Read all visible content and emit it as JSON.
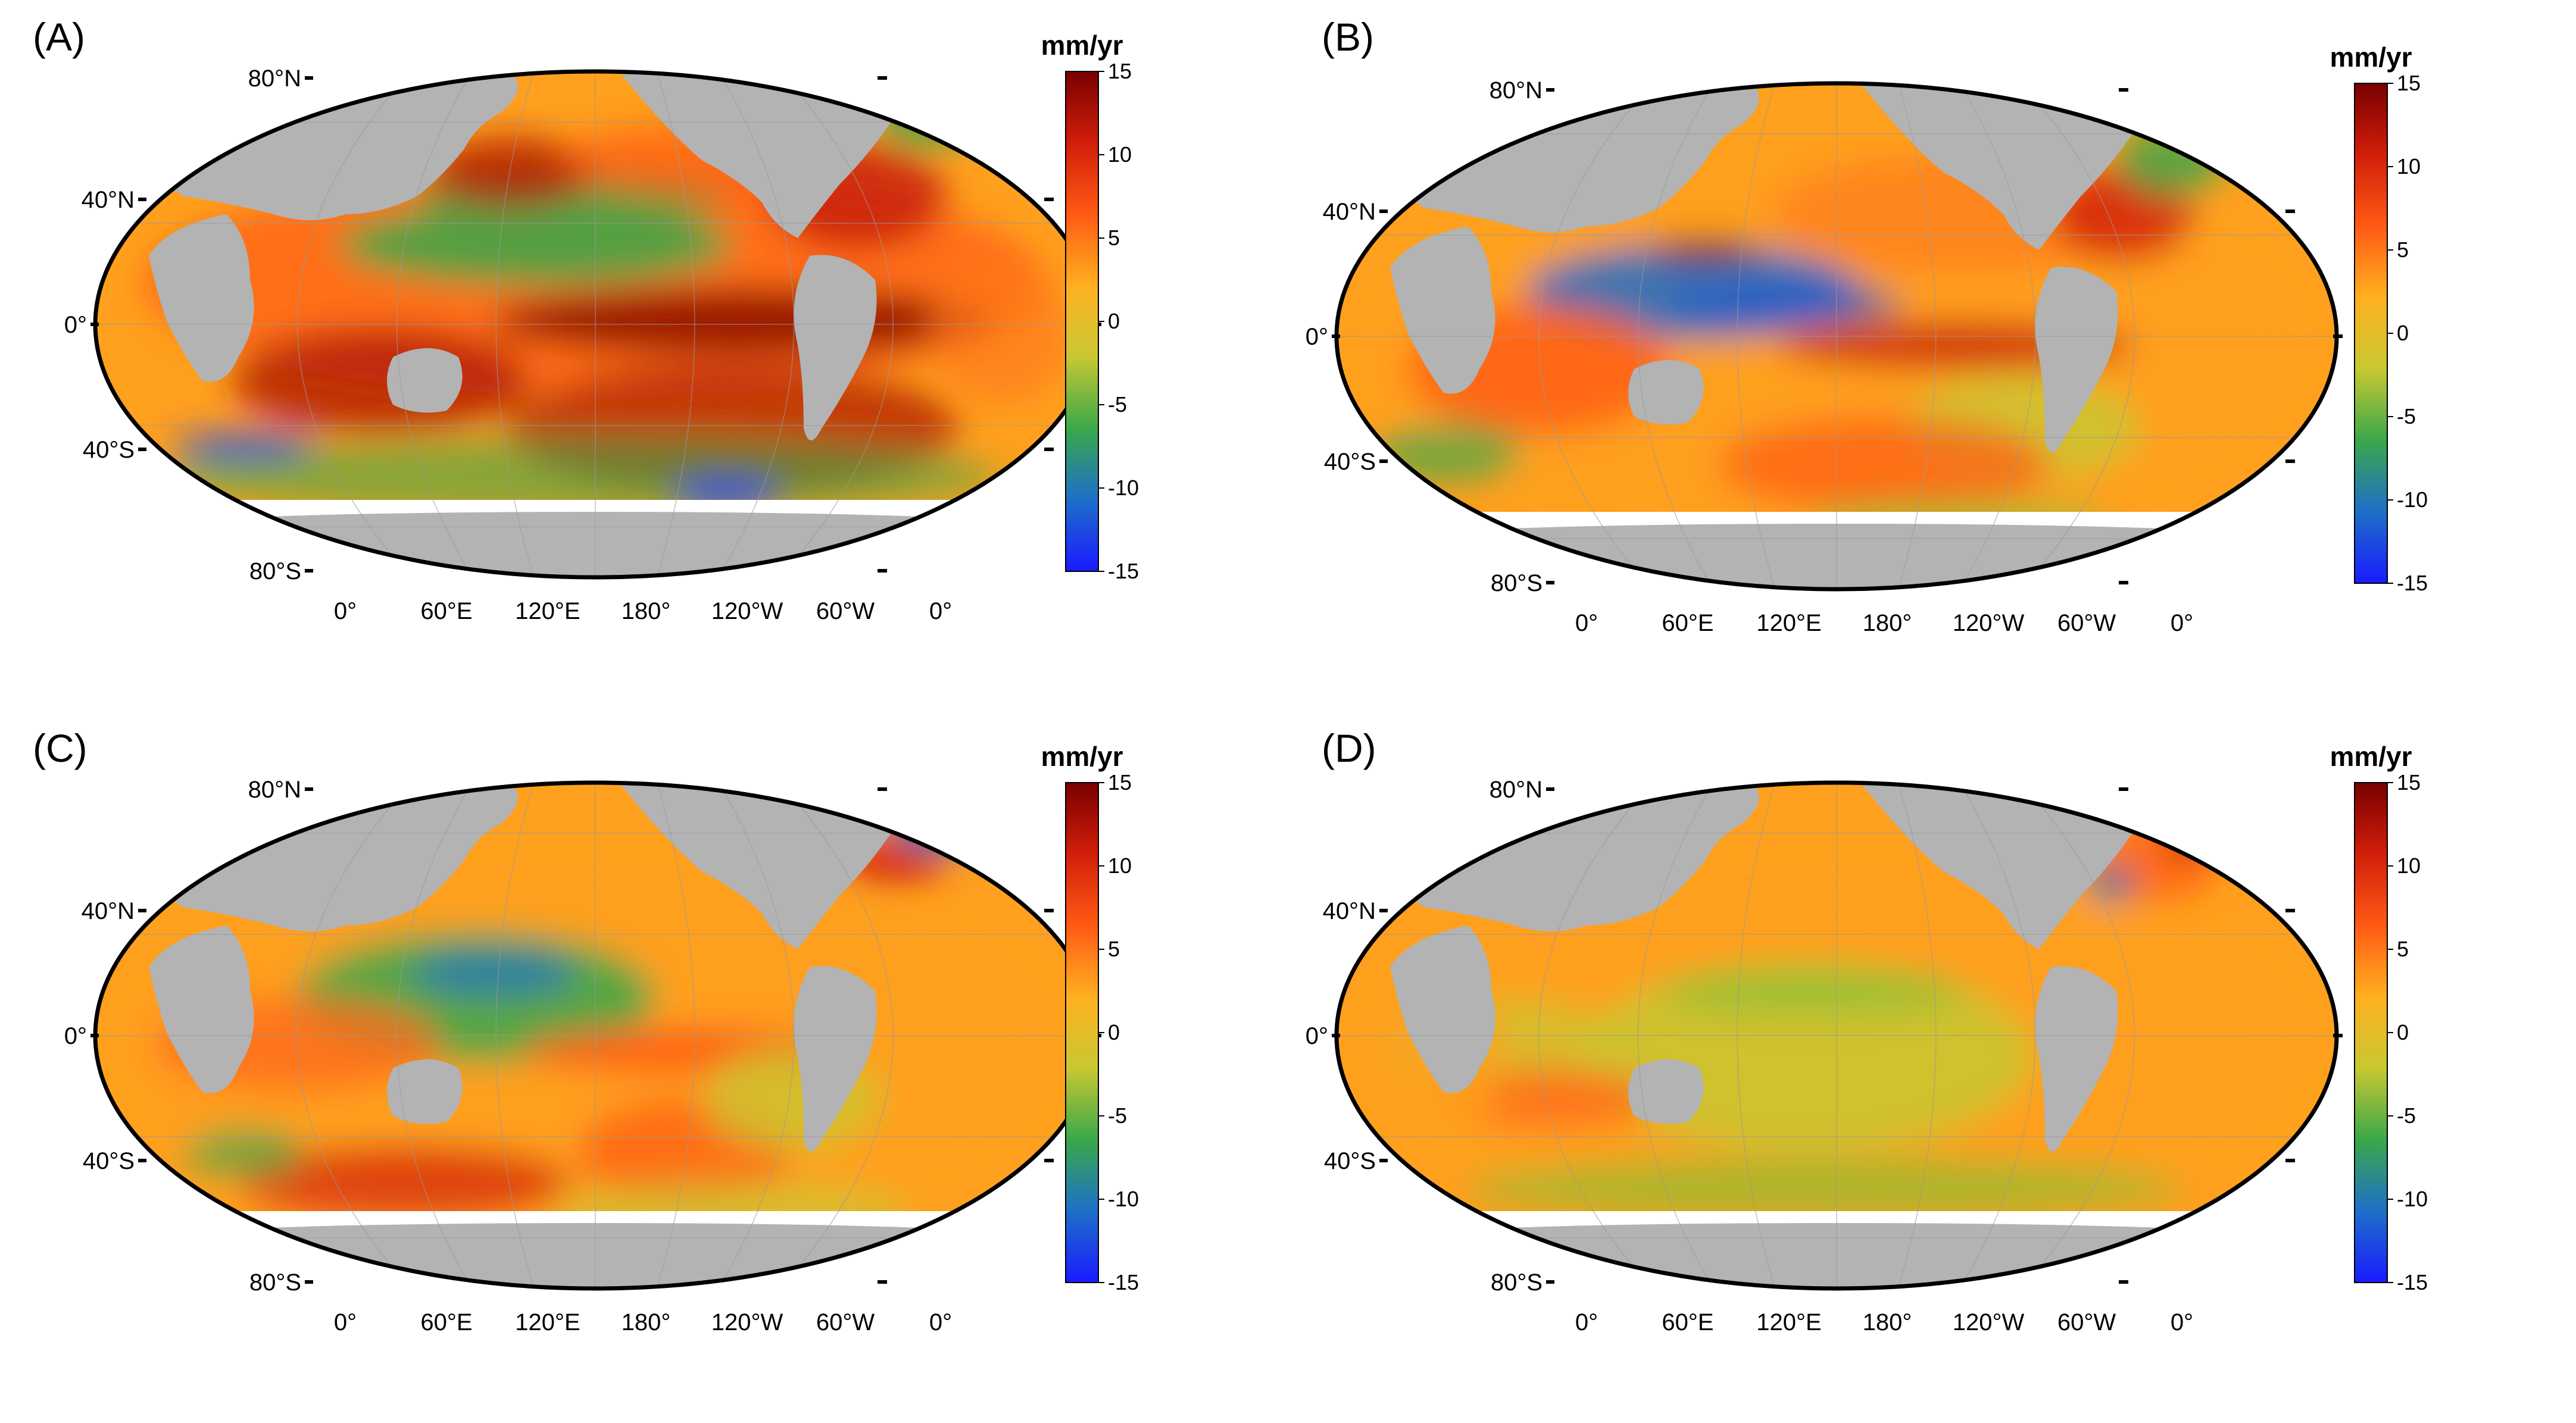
{
  "panels": [
    {
      "label": "(A)"
    },
    {
      "label": "(B)"
    },
    {
      "label": "(C)"
    },
    {
      "label": "(D)"
    }
  ],
  "lat_labels": [
    "80°N",
    "40°N",
    "0°",
    "40°S",
    "80°S"
  ],
  "lon_labels": [
    "0°",
    "60°E",
    "120°E",
    "180°",
    "120°W",
    "60°W",
    "0°"
  ],
  "colorbar": {
    "unit": "mm/yr",
    "ticks": [
      "15",
      "10",
      "5",
      "0",
      "-5",
      "-10",
      "-15"
    ],
    "min": -15,
    "max": 15,
    "colors": [
      "#1a1aff",
      "#1e6fc8",
      "#3aa84a",
      "#c8c832",
      "#ffb020",
      "#ff5a14",
      "#d21e0a",
      "#780000"
    ]
  },
  "colors": {
    "land": "#b3b3b3",
    "ice": "#ffffff",
    "frame": "#000000"
  }
}
